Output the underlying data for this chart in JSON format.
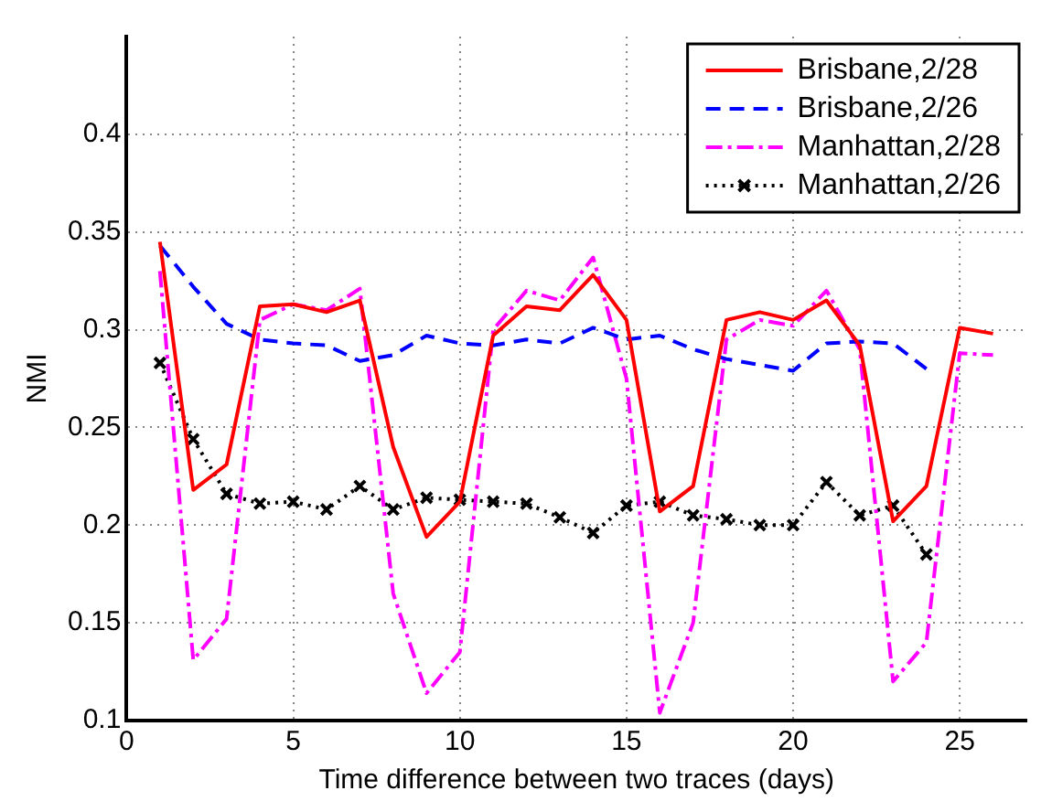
{
  "chart_data": {
    "type": "line",
    "xlabel": "Time difference between two traces (days)",
    "ylabel": "NMI",
    "xlim": [
      0,
      27
    ],
    "xticks": [
      0,
      5,
      10,
      15,
      20,
      25
    ],
    "ylim": [
      0.1,
      0.45
    ],
    "yticks": [
      0.1,
      0.15,
      0.2,
      0.25,
      0.3,
      0.35,
      0.4
    ],
    "grid": true,
    "legend": "top right",
    "marker": "none",
    "series": [
      {
        "name": "Brisbane,2/28",
        "color": "#ff0000",
        "line_style": "solid",
        "x": [
          1,
          2,
          3,
          4,
          5,
          6,
          7,
          8,
          9,
          10,
          11,
          12,
          13,
          14,
          15,
          16,
          17,
          18,
          19,
          20,
          21,
          22,
          23,
          24,
          25,
          26
        ],
        "values": [
          0.345,
          0.218,
          0.231,
          0.312,
          0.313,
          0.309,
          0.315,
          0.24,
          0.194,
          0.212,
          0.297,
          0.312,
          0.31,
          0.328,
          0.305,
          0.207,
          0.22,
          0.305,
          0.309,
          0.305,
          0.315,
          0.292,
          0.202,
          0.22,
          0.301,
          0.298
        ]
      },
      {
        "name": "Brisbane,2/26",
        "color": "#0000ff",
        "line_style": "dashed",
        "x": [
          1,
          2,
          3,
          4,
          5,
          6,
          7,
          8,
          9,
          10,
          11,
          12,
          13,
          14,
          15,
          16,
          17,
          18,
          19,
          20,
          21,
          22,
          23,
          24
        ],
        "values": [
          0.343,
          0.322,
          0.303,
          0.295,
          0.293,
          0.292,
          0.284,
          0.287,
          0.297,
          0.293,
          0.292,
          0.295,
          0.293,
          0.301,
          0.295,
          0.297,
          0.29,
          0.285,
          0.282,
          0.279,
          0.293,
          0.294,
          0.293,
          0.28
        ]
      },
      {
        "name": "Manhattan,2/28",
        "color": "#ff00ff",
        "line_style": "dashdot",
        "x": [
          1,
          2,
          3,
          4,
          5,
          6,
          7,
          8,
          9,
          10,
          11,
          12,
          13,
          14,
          15,
          16,
          17,
          18,
          19,
          20,
          21,
          22,
          23,
          24,
          25,
          26
        ],
        "values": [
          0.33,
          0.131,
          0.152,
          0.305,
          0.313,
          0.31,
          0.321,
          0.165,
          0.114,
          0.135,
          0.3,
          0.32,
          0.315,
          0.337,
          0.275,
          0.104,
          0.15,
          0.295,
          0.305,
          0.302,
          0.32,
          0.29,
          0.12,
          0.14,
          0.288,
          0.287
        ]
      },
      {
        "name": "Manhattan,2/26",
        "color": "#000000",
        "line_style": "dotted",
        "marker": "cross",
        "x": [
          1,
          2,
          3,
          4,
          5,
          6,
          7,
          8,
          9,
          10,
          11,
          12,
          13,
          14,
          15,
          16,
          17,
          18,
          19,
          20,
          21,
          22,
          23,
          24
        ],
        "values": [
          0.283,
          0.244,
          0.216,
          0.211,
          0.212,
          0.208,
          0.22,
          0.208,
          0.214,
          0.213,
          0.212,
          0.211,
          0.204,
          0.196,
          0.21,
          0.212,
          0.205,
          0.203,
          0.2,
          0.2,
          0.222,
          0.205,
          0.21,
          0.185
        ]
      }
    ]
  }
}
